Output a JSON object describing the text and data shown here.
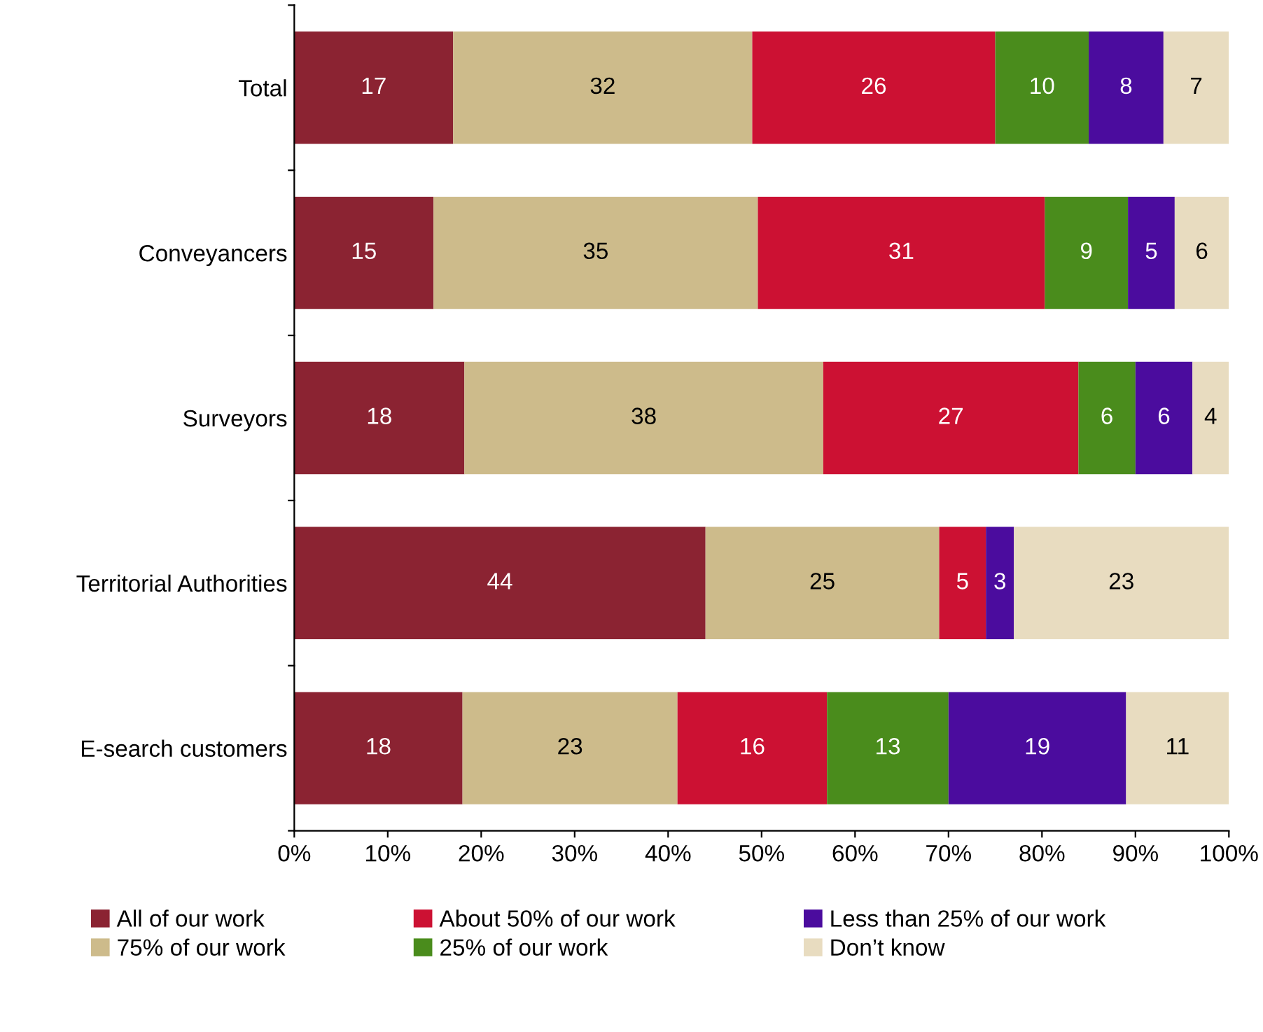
{
  "chart_data": {
    "type": "bar",
    "orientation": "horizontal",
    "stacked": true,
    "categories": [
      "Total",
      "Conveyancers",
      "Surveyors",
      "Territorial Authorities",
      "E-search customers"
    ],
    "xlim": [
      0,
      100
    ],
    "xticks": [
      {
        "value": 0,
        "label": "0%"
      },
      {
        "value": 10,
        "label": "10%"
      },
      {
        "value": 20,
        "label": "20%"
      },
      {
        "value": 30,
        "label": "30%"
      },
      {
        "value": 40,
        "label": "40%"
      },
      {
        "value": 50,
        "label": "50%"
      },
      {
        "value": 60,
        "label": "60%"
      },
      {
        "value": 70,
        "label": "70%"
      },
      {
        "value": 80,
        "label": "80%"
      },
      {
        "value": 90,
        "label": "90%"
      },
      {
        "value": 100,
        "label": "100%"
      }
    ],
    "grid": false,
    "legend": "bottom",
    "series": [
      {
        "name": "All of our work",
        "color": "#8b2332",
        "values": [
          17,
          14.9,
          18.2,
          44,
          18
        ],
        "value_labels": [
          "17",
          "15",
          "18",
          "44",
          "18"
        ]
      },
      {
        "name": "75% of our work",
        "color": "#cdbb8b",
        "values": [
          32,
          34.7,
          38.4,
          25,
          23
        ],
        "value_labels": [
          "32",
          "35",
          "38",
          "25",
          "23"
        ]
      },
      {
        "name": "About 50% of our work",
        "color": "#cc1133",
        "values": [
          26,
          30.7,
          27.3,
          5,
          16
        ],
        "value_labels": [
          "26",
          "31",
          "27",
          "5",
          "16"
        ]
      },
      {
        "name": "25% of our work",
        "color": "#4a8c1c",
        "values": [
          10,
          8.9,
          6.1,
          0,
          13
        ],
        "value_labels": [
          "10",
          "9",
          "6",
          null,
          "13"
        ]
      },
      {
        "name": "Less than 25% of our work",
        "color": "#4b0c9e",
        "values": [
          8,
          5.0,
          6.1,
          3,
          19
        ],
        "value_labels": [
          "8",
          "5",
          "6",
          "3",
          "19"
        ]
      },
      {
        "name": "Don’t know",
        "color": "#e8dcc0",
        "values": [
          7,
          5.8,
          3.9,
          23,
          11
        ],
        "value_labels": [
          "7",
          "6",
          "4",
          "23",
          "11"
        ]
      }
    ]
  }
}
